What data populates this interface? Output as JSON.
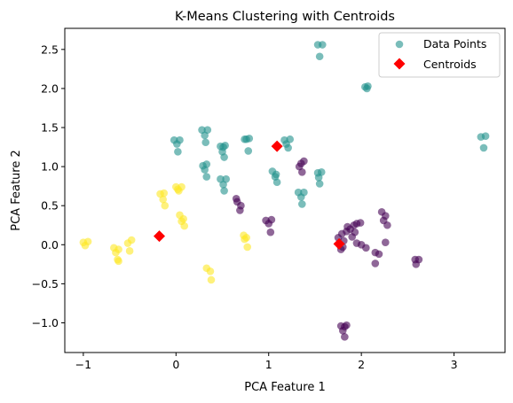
{
  "chart_data": {
    "type": "scatter",
    "title": "K-Means Clustering with Centroids",
    "xlabel": "PCA Feature 1",
    "ylabel": "PCA Feature 2",
    "xlim": [
      -1.2,
      3.55
    ],
    "ylim": [
      -1.38,
      2.77
    ],
    "xticks": [
      -1,
      0,
      1,
      2,
      3
    ],
    "yticks": [
      -1.0,
      -0.5,
      0.0,
      0.5,
      1.0,
      1.5,
      2.0,
      2.5
    ],
    "ytick_labels": [
      "−1.0",
      "−0.5",
      "0.0",
      "0.5",
      "1.0",
      "1.5",
      "2.0",
      "2.5"
    ],
    "xtick_labels": [
      "−1",
      "0",
      "1",
      "2",
      "3"
    ],
    "grid": false,
    "legend": {
      "placement": "top-right",
      "entries": [
        {
          "label": "Data Points",
          "marker": "circle",
          "color": "#21918c"
        },
        {
          "label": "Centroids",
          "marker": "diamond",
          "color": "#ff0000"
        }
      ]
    },
    "cluster_colors": {
      "0": "#440154",
      "1": "#21918c",
      "2": "#fde725"
    },
    "series": [
      {
        "cluster": 0,
        "points": [
          [
            0.65,
            0.59
          ],
          [
            0.66,
            0.55
          ],
          [
            0.7,
            0.5
          ],
          [
            0.69,
            0.44
          ],
          [
            0.97,
            0.31
          ],
          [
            1.03,
            0.32
          ],
          [
            1.0,
            0.27
          ],
          [
            1.02,
            0.16
          ],
          [
            1.38,
            1.07
          ],
          [
            1.35,
            1.04
          ],
          [
            1.33,
            1.0
          ],
          [
            1.36,
            0.93
          ],
          [
            1.75,
            0.09
          ],
          [
            1.79,
            0.14
          ],
          [
            1.81,
            0.05
          ],
          [
            1.85,
            0.23
          ],
          [
            1.88,
            0.2
          ],
          [
            1.84,
            0.17
          ],
          [
            1.92,
            0.25
          ],
          [
            1.95,
            0.27
          ],
          [
            1.99,
            0.28
          ],
          [
            1.93,
            0.16
          ],
          [
            1.9,
            0.1
          ],
          [
            1.95,
            0.02
          ],
          [
            2.0,
            0.0
          ],
          [
            2.05,
            -0.04
          ],
          [
            1.78,
            -0.06
          ],
          [
            1.8,
            -0.03
          ],
          [
            2.22,
            0.42
          ],
          [
            2.26,
            0.37
          ],
          [
            2.24,
            0.31
          ],
          [
            2.28,
            0.25
          ],
          [
            2.26,
            0.03
          ],
          [
            2.15,
            -0.1
          ],
          [
            2.19,
            -0.12
          ],
          [
            2.15,
            -0.24
          ],
          [
            2.58,
            -0.19
          ],
          [
            2.62,
            -0.19
          ],
          [
            2.59,
            -0.25
          ],
          [
            1.78,
            -1.04
          ],
          [
            1.82,
            -1.05
          ],
          [
            1.84,
            -1.03
          ],
          [
            1.8,
            -1.1
          ],
          [
            1.82,
            -1.18
          ]
        ]
      },
      {
        "cluster": 1,
        "points": [
          [
            1.53,
            2.56
          ],
          [
            1.58,
            2.56
          ],
          [
            1.55,
            2.41
          ],
          [
            2.04,
            2.02
          ],
          [
            2.07,
            2.03
          ],
          [
            2.06,
            2.0
          ],
          [
            3.29,
            1.38
          ],
          [
            3.34,
            1.39
          ],
          [
            3.32,
            1.24
          ],
          [
            -0.02,
            1.34
          ],
          [
            0.04,
            1.34
          ],
          [
            0.01,
            1.29
          ],
          [
            0.02,
            1.19
          ],
          [
            0.28,
            1.47
          ],
          [
            0.34,
            1.47
          ],
          [
            0.31,
            1.4
          ],
          [
            0.32,
            1.31
          ],
          [
            0.29,
            1.01
          ],
          [
            0.33,
            1.03
          ],
          [
            0.31,
            0.96
          ],
          [
            0.33,
            0.87
          ],
          [
            0.48,
            1.26
          ],
          [
            0.51,
            1.25
          ],
          [
            0.53,
            1.27
          ],
          [
            0.5,
            1.19
          ],
          [
            0.52,
            1.12
          ],
          [
            0.48,
            0.84
          ],
          [
            0.54,
            0.84
          ],
          [
            0.51,
            0.77
          ],
          [
            0.52,
            0.69
          ],
          [
            0.74,
            1.35
          ],
          [
            0.79,
            1.36
          ],
          [
            0.76,
            1.35
          ],
          [
            0.78,
            1.2
          ],
          [
            1.17,
            1.34
          ],
          [
            1.23,
            1.35
          ],
          [
            1.19,
            1.29
          ],
          [
            1.21,
            1.24
          ],
          [
            1.04,
            0.94
          ],
          [
            1.08,
            0.9
          ],
          [
            1.07,
            0.87
          ],
          [
            1.09,
            0.8
          ],
          [
            1.32,
            0.67
          ],
          [
            1.38,
            0.67
          ],
          [
            1.35,
            0.61
          ],
          [
            1.36,
            0.52
          ],
          [
            1.53,
            0.92
          ],
          [
            1.57,
            0.93
          ],
          [
            1.54,
            0.86
          ],
          [
            1.55,
            0.78
          ]
        ]
      },
      {
        "cluster": 2,
        "points": [
          [
            -1.0,
            0.03
          ],
          [
            -0.95,
            0.04
          ],
          [
            -0.98,
            -0.01
          ],
          [
            -0.67,
            -0.04
          ],
          [
            -0.62,
            -0.06
          ],
          [
            -0.65,
            -0.1
          ],
          [
            -0.63,
            -0.19
          ],
          [
            -0.62,
            -0.21
          ],
          [
            -0.52,
            0.02
          ],
          [
            -0.48,
            0.06
          ],
          [
            -0.5,
            -0.08
          ],
          [
            -0.17,
            0.65
          ],
          [
            -0.13,
            0.66
          ],
          [
            -0.14,
            0.58
          ],
          [
            -0.12,
            0.5
          ],
          [
            0.0,
            0.74
          ],
          [
            0.06,
            0.74
          ],
          [
            0.02,
            0.71
          ],
          [
            0.03,
            0.69
          ],
          [
            0.04,
            0.38
          ],
          [
            0.08,
            0.33
          ],
          [
            0.06,
            0.3
          ],
          [
            0.09,
            0.24
          ],
          [
            0.33,
            -0.3
          ],
          [
            0.37,
            -0.34
          ],
          [
            0.38,
            -0.45
          ],
          [
            0.73,
            0.12
          ],
          [
            0.76,
            0.09
          ],
          [
            0.74,
            0.07
          ],
          [
            0.77,
            -0.03
          ]
        ]
      }
    ],
    "centroids": [
      [
        -0.18,
        0.11
      ],
      [
        1.09,
        1.26
      ],
      [
        1.76,
        0.01
      ]
    ]
  }
}
